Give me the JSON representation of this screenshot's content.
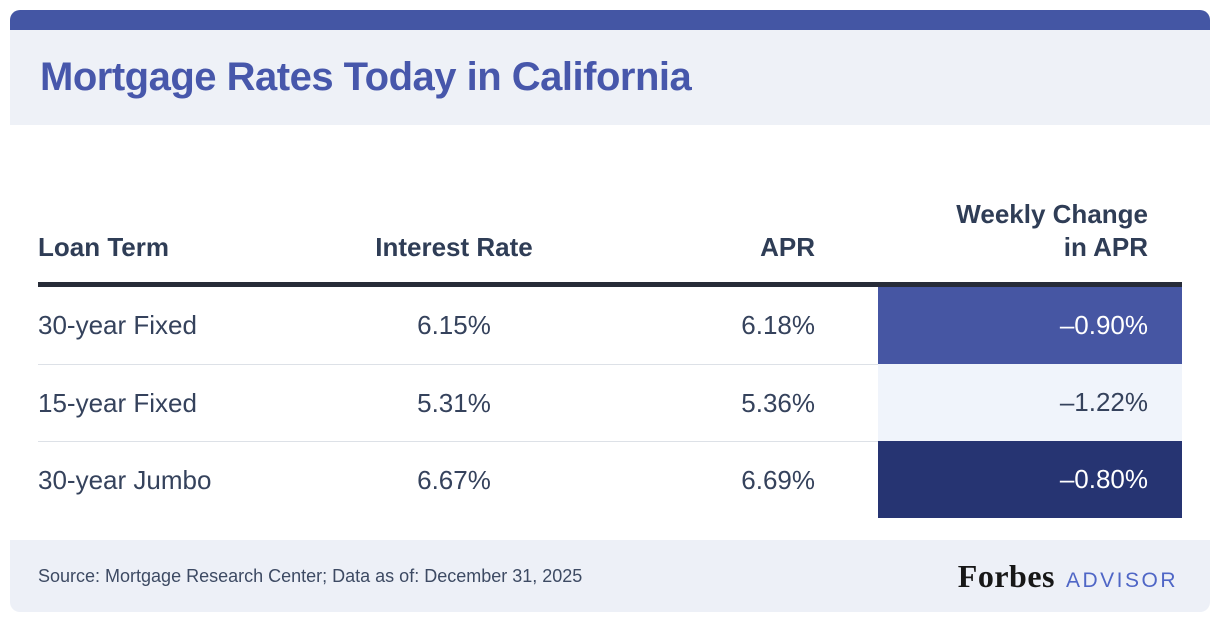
{
  "title": "Mortgage Rates Today in California",
  "table": {
    "headers": {
      "loan_term": "Loan Term",
      "interest_rate": "Interest Rate",
      "apr": "APR",
      "weekly_change_line1": "Weekly Change",
      "weekly_change_line2": "in APR"
    },
    "rows": [
      {
        "term": "30-year Fixed",
        "rate": "6.15%",
        "apr": "6.18%",
        "change": "–0.90%",
        "change_bg": "#4656a3",
        "change_fg": "#ffffff"
      },
      {
        "term": "15-year Fixed",
        "rate": "5.31%",
        "apr": "5.36%",
        "change": "–1.22%",
        "change_bg": "#f0f4fb",
        "change_fg": "#35425c"
      },
      {
        "term": "30-year Jumbo",
        "rate": "6.67%",
        "apr": "6.69%",
        "change": "–0.80%",
        "change_bg": "#263472",
        "change_fg": "#ffffff"
      }
    ]
  },
  "footer": {
    "source": "Source: Mortgage Research Center; Data as of: December 31, 2025",
    "brand_name": "Forbes",
    "brand_suffix": "ADVISOR"
  },
  "colors": {
    "top_bar": "#4456a4",
    "title_text": "#4757ab",
    "band_background": "#eef1f7",
    "header_rule": "#272c38",
    "body_text": "#35425c",
    "advisor_blue": "#4f66c6"
  },
  "chart_data": {
    "type": "table",
    "title": "Mortgage Rates Today in California",
    "columns": [
      "Loan Term",
      "Interest Rate",
      "APR",
      "Weekly Change in APR"
    ],
    "rows": [
      [
        "30-year Fixed",
        "6.15%",
        "6.18%",
        "-0.90%"
      ],
      [
        "15-year Fixed",
        "5.31%",
        "5.36%",
        "-1.22%"
      ],
      [
        "30-year Jumbo",
        "6.67%",
        "6.69%",
        "-0.80%"
      ]
    ],
    "units": "percent",
    "notes": "Weekly Change in APR cells are color-highlighted per row: medium blue, pale blue, dark navy"
  }
}
